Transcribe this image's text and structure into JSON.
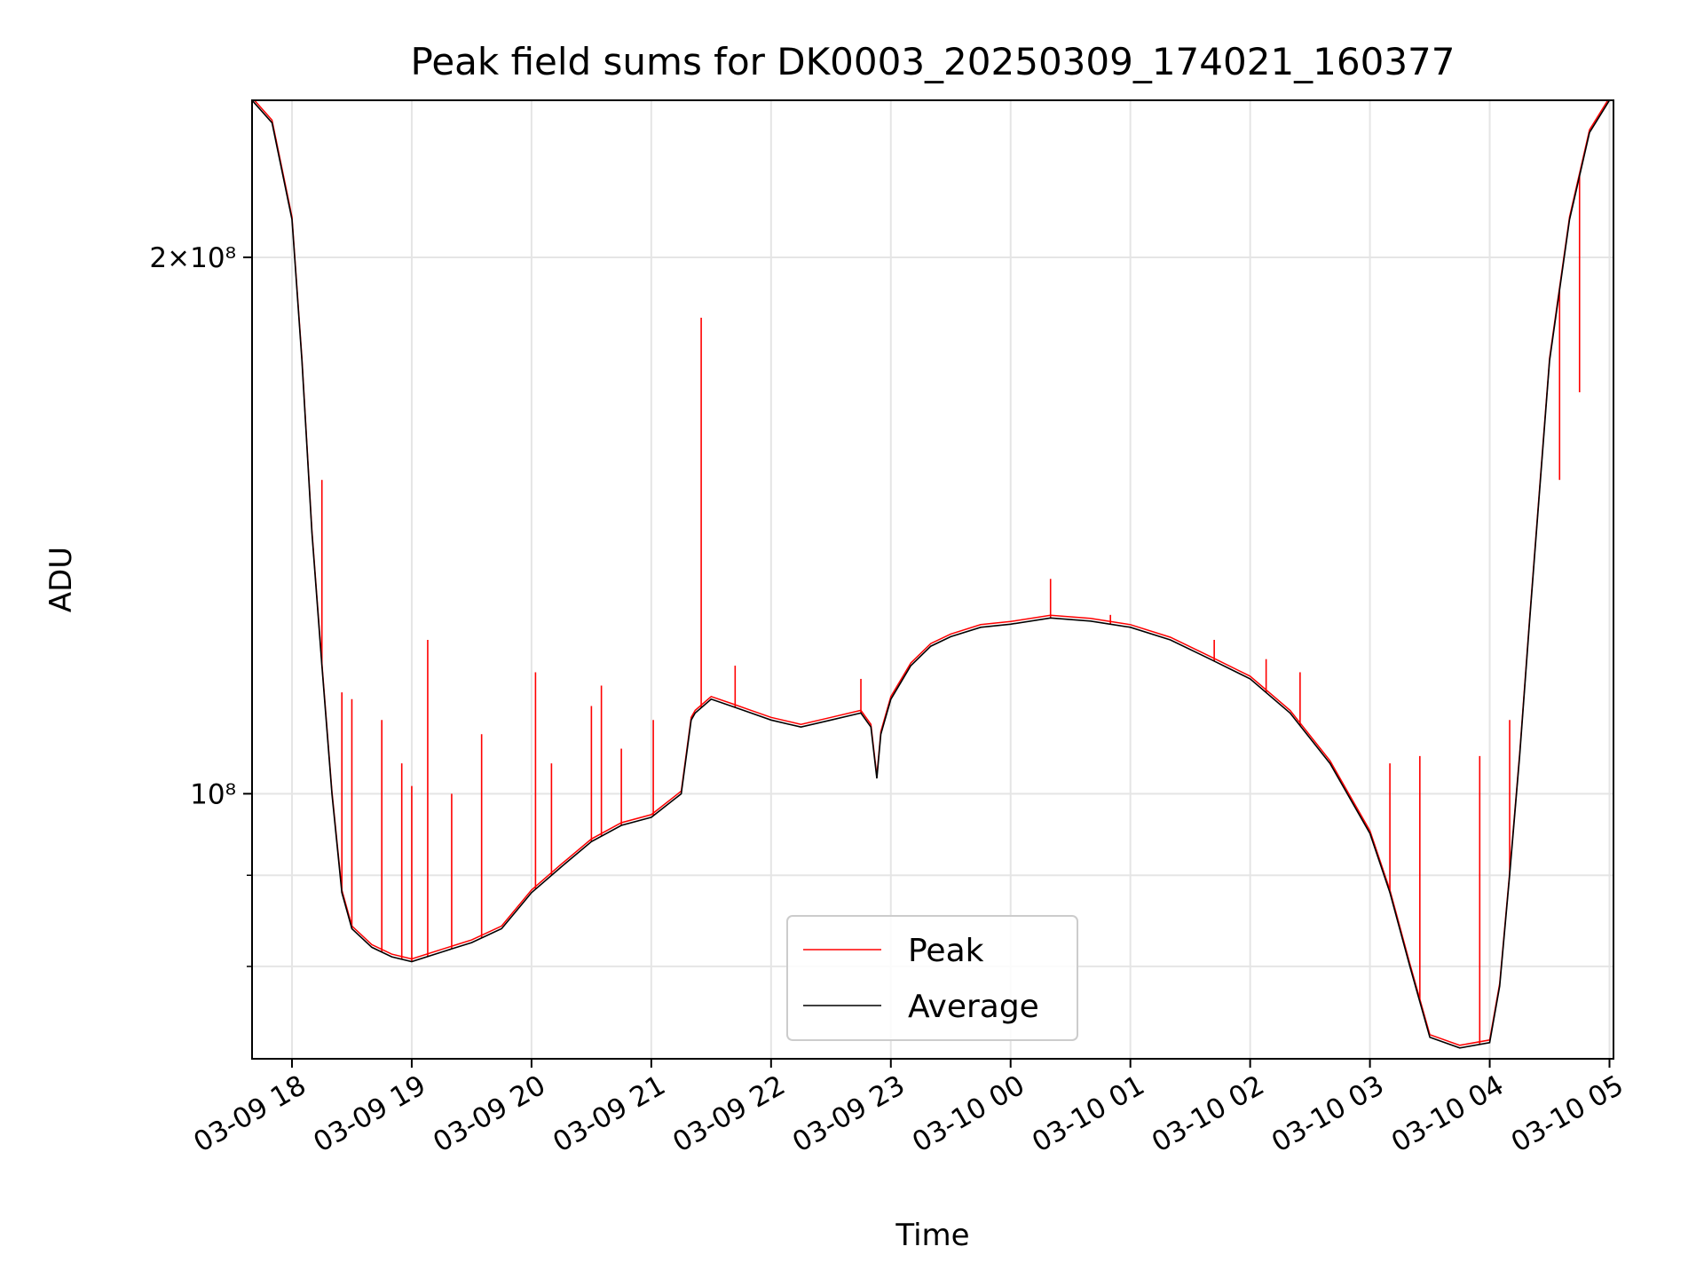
{
  "chart_data": {
    "type": "line",
    "title": "Peak field sums for DK0003_20250309_174021_160377",
    "xlabel": "Time",
    "ylabel": "ADU",
    "yscale": "log",
    "ylim": [
      71000000,
      245000000
    ],
    "xlim": [
      "2025-03-09 17:40",
      "2025-03-10 05:02"
    ],
    "x_ticks": [
      "03-09 18",
      "03-09 19",
      "03-09 20",
      "03-09 21",
      "03-09 22",
      "03-09 23",
      "03-10 00",
      "03-10 01",
      "03-10 02",
      "03-10 03",
      "03-10 04",
      "03-10 05"
    ],
    "y_tick_labels": [
      {
        "value": 200000000,
        "label": "2×10⁸"
      },
      {
        "value": 100000000,
        "label": "10⁸"
      }
    ],
    "y_minor_ticks": [
      80000000,
      90000000
    ],
    "grid": true,
    "legend": "lower center",
    "series": [
      {
        "name": "Average",
        "color": "#000000",
        "x": [
          "2025-03-09 17:40",
          "2025-03-09 17:50",
          "2025-03-09 18:00",
          "2025-03-09 18:05",
          "2025-03-09 18:10",
          "2025-03-09 18:15",
          "2025-03-09 18:20",
          "2025-03-09 18:25",
          "2025-03-09 18:30",
          "2025-03-09 18:40",
          "2025-03-09 18:50",
          "2025-03-09 19:00",
          "2025-03-09 19:15",
          "2025-03-09 19:30",
          "2025-03-09 19:45",
          "2025-03-09 20:00",
          "2025-03-09 20:15",
          "2025-03-09 20:30",
          "2025-03-09 20:45",
          "2025-03-09 21:00",
          "2025-03-09 21:15",
          "2025-03-09 21:20",
          "2025-03-09 21:22",
          "2025-03-09 21:30",
          "2025-03-09 21:40",
          "2025-03-09 21:50",
          "2025-03-09 22:00",
          "2025-03-09 22:15",
          "2025-03-09 22:30",
          "2025-03-09 22:45",
          "2025-03-09 22:50",
          "2025-03-09 22:53",
          "2025-03-09 22:55",
          "2025-03-09 23:00",
          "2025-03-09 23:10",
          "2025-03-09 23:20",
          "2025-03-09 23:30",
          "2025-03-09 23:45",
          "2025-03-10 00:00",
          "2025-03-10 00:20",
          "2025-03-10 00:40",
          "2025-03-10 01:00",
          "2025-03-10 01:20",
          "2025-03-10 01:40",
          "2025-03-10 02:00",
          "2025-03-10 02:20",
          "2025-03-10 02:40",
          "2025-03-10 03:00",
          "2025-03-10 03:10",
          "2025-03-10 03:20",
          "2025-03-10 03:30",
          "2025-03-10 03:45",
          "2025-03-10 04:00",
          "2025-03-10 04:05",
          "2025-03-10 04:10",
          "2025-03-10 04:15",
          "2025-03-10 04:20",
          "2025-03-10 04:30",
          "2025-03-10 04:40",
          "2025-03-10 04:50",
          "2025-03-10 05:00",
          "2025-03-10 05:02"
        ],
        "y": [
          245000000,
          238000000,
          210000000,
          175000000,
          140000000,
          118000000,
          100000000,
          88000000,
          84000000,
          82000000,
          81000000,
          80500000,
          81500000,
          82500000,
          84000000,
          88000000,
          91000000,
          94000000,
          96000000,
          97000000,
          100000000,
          110000000,
          111000000,
          113000000,
          112000000,
          111000000,
          110000000,
          109000000,
          110000000,
          111000000,
          109000000,
          102000000,
          108000000,
          113000000,
          118000000,
          121000000,
          122500000,
          124000000,
          124500000,
          125500000,
          125000000,
          124000000,
          122000000,
          119000000,
          116000000,
          111000000,
          104000000,
          95000000,
          88000000,
          80000000,
          73000000,
          72000000,
          72500000,
          78000000,
          90000000,
          105000000,
          125000000,
          175000000,
          210000000,
          235000000,
          245000000,
          245000000
        ]
      },
      {
        "name": "Peak",
        "color": "#ff0000",
        "spikes": [
          {
            "x": "2025-03-09 17:52",
            "y": 233000000
          },
          {
            "x": "2025-03-09 18:15",
            "y": 150000000
          },
          {
            "x": "2025-03-09 18:25",
            "y": 114000000
          },
          {
            "x": "2025-03-09 18:30",
            "y": 113000000
          },
          {
            "x": "2025-03-09 18:45",
            "y": 110000000
          },
          {
            "x": "2025-03-09 18:55",
            "y": 104000000
          },
          {
            "x": "2025-03-09 19:00",
            "y": 101000000
          },
          {
            "x": "2025-03-09 19:08",
            "y": 122000000
          },
          {
            "x": "2025-03-09 19:20",
            "y": 100000000
          },
          {
            "x": "2025-03-09 19:35",
            "y": 108000000
          },
          {
            "x": "2025-03-09 20:02",
            "y": 117000000
          },
          {
            "x": "2025-03-09 20:10",
            "y": 104000000
          },
          {
            "x": "2025-03-09 20:30",
            "y": 112000000
          },
          {
            "x": "2025-03-09 20:35",
            "y": 115000000
          },
          {
            "x": "2025-03-09 20:45",
            "y": 106000000
          },
          {
            "x": "2025-03-09 21:01",
            "y": 110000000
          },
          {
            "x": "2025-03-09 21:25",
            "y": 185000000
          },
          {
            "x": "2025-03-09 21:42",
            "y": 118000000
          },
          {
            "x": "2025-03-09 22:45",
            "y": 116000000
          },
          {
            "x": "2025-03-10 00:20",
            "y": 132000000
          },
          {
            "x": "2025-03-10 00:50",
            "y": 126000000
          },
          {
            "x": "2025-03-10 01:42",
            "y": 122000000
          },
          {
            "x": "2025-03-10 02:08",
            "y": 119000000
          },
          {
            "x": "2025-03-10 02:25",
            "y": 117000000
          },
          {
            "x": "2025-03-10 03:25",
            "y": 105000000
          },
          {
            "x": "2025-03-10 03:10",
            "y": 104000000
          },
          {
            "x": "2025-03-10 03:55",
            "y": 105000000
          },
          {
            "x": "2025-03-10 04:10",
            "y": 110000000
          },
          {
            "x": "2025-03-10 04:35",
            "y": 150000000
          },
          {
            "x": "2025-03-10 04:45",
            "y": 168000000
          }
        ]
      }
    ]
  }
}
